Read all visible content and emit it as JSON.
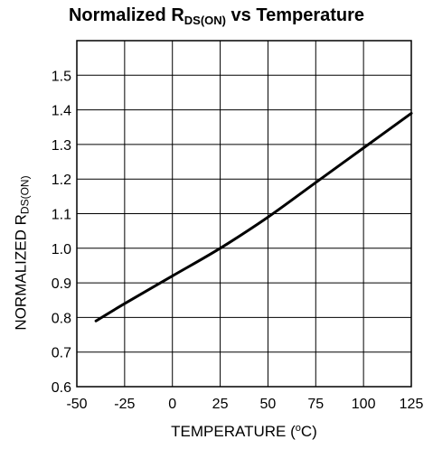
{
  "title": {
    "main": "Normalized R",
    "sub": "DS(ON)",
    "rest": " vs Temperature"
  },
  "y_axis_label": {
    "main": "NORMALIZED R",
    "sub": "DS(ON)"
  },
  "x_axis_label": {
    "pre": "TEMPERATURE (",
    "sup": "o",
    "post": "C)"
  },
  "chart_data": {
    "type": "line",
    "title": "Normalized RDS(ON) vs Temperature",
    "xlabel": "TEMPERATURE (°C)",
    "ylabel": "NORMALIZED RDS(ON)",
    "xlim": [
      -50,
      125
    ],
    "ylim": [
      0.6,
      1.6
    ],
    "x_ticks": [
      -50,
      -25,
      0,
      25,
      50,
      75,
      100,
      125
    ],
    "y_ticks": [
      0.6,
      0.7,
      0.8,
      0.9,
      1.0,
      1.1,
      1.2,
      1.3,
      1.4,
      1.5
    ],
    "x_tick_labels": [
      "-50",
      "-25",
      "0",
      "25",
      "50",
      "75",
      "100",
      "125"
    ],
    "y_tick_labels": [
      "0.6",
      "0.7",
      "0.8",
      "0.9",
      "1.0",
      "1.1",
      "1.2",
      "1.3",
      "1.4",
      "1.5"
    ],
    "grid": true,
    "series": [
      {
        "x": [
          -40,
          -25,
          0,
          25,
          50,
          75,
          100,
          125
        ],
        "y": [
          0.79,
          0.84,
          0.92,
          1.0,
          1.09,
          1.19,
          1.29,
          1.39
        ]
      }
    ]
  }
}
